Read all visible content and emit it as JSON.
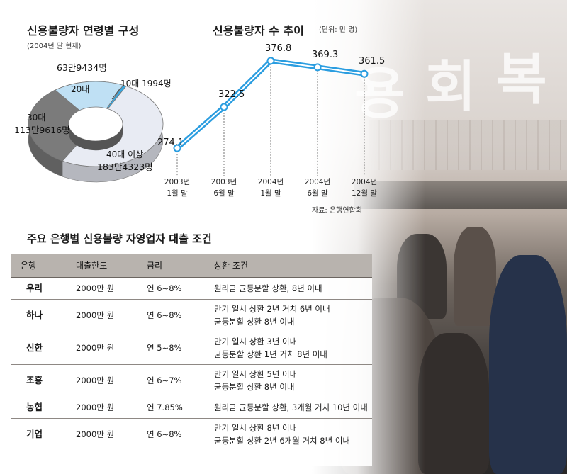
{
  "colors": {
    "donut_20": "#bfe0f4",
    "donut_10": "#38a8e0",
    "donut_30": "#7b7b7b",
    "donut_40": "#e8ebf3",
    "line": "#2a9de0",
    "table_header": "#b8b3ae"
  },
  "donut_section": {
    "title": "신용불량자 연령별 구성",
    "subtitle": "(2004년 말 현재)"
  },
  "line_section": {
    "title": "신용불량자 수 추이",
    "unit": "(단위: 만 명)",
    "source": "자료: 은행연합회"
  },
  "chart_data": [
    {
      "type": "pie",
      "variant": "donut",
      "title": "신용불량자 연령별 구성",
      "subtitle": "(2004년 말 현재)",
      "slices": [
        {
          "label": "20대",
          "value_label": "63만9434명",
          "value": 639434,
          "color": "#bfe0f4"
        },
        {
          "label": "10대",
          "value_label": "1994명",
          "value": 1994,
          "color": "#38a8e0"
        },
        {
          "label": "40대 이상",
          "value_label": "183만4323명",
          "value": 1834323,
          "color": "#e8ebf3"
        },
        {
          "label": "30대",
          "value_label": "113만9616명",
          "value": 1139616,
          "color": "#7b7b7b"
        }
      ]
    },
    {
      "type": "line",
      "title": "신용불량자 수 추이",
      "unit": "(단위: 만 명)",
      "categories": [
        "2003년 1월 말",
        "2003년 6월 말",
        "2004년 1월 말",
        "2004년 6월 말",
        "2004년 12월 말"
      ],
      "category_lines": [
        [
          "2003년",
          "1월 말"
        ],
        [
          "2003년",
          "6월 말"
        ],
        [
          "2004년",
          "1월 말"
        ],
        [
          "2004년",
          "6월 말"
        ],
        [
          "2004년",
          "12월 말"
        ]
      ],
      "series": [
        {
          "values": [
            274.1,
            322.5,
            376.8,
            369.3,
            361.5
          ],
          "labels": [
            "274.1",
            "322.5",
            "376.8",
            "369.3",
            "361.5"
          ]
        }
      ],
      "source": "자료: 은행연합회"
    }
  ],
  "table": {
    "title": "주요 은행별 신용불량 자영업자  대출 조건",
    "headers": [
      "은행",
      "대출한도",
      "금리",
      "상환 조건"
    ],
    "rows": [
      {
        "bank": "우리",
        "limit": "2000만 원",
        "rate": "연 6∼8%",
        "cond": [
          "원리금 균등분할 상환, 8년 이내"
        ]
      },
      {
        "bank": "하나",
        "limit": "2000만 원",
        "rate": "연 6∼8%",
        "cond": [
          "만기 일시 상환 2년 거치 6년 이내",
          "균등분할 상환 8년 이내"
        ]
      },
      {
        "bank": "신한",
        "limit": "2000만 원",
        "rate": "연 5∼8%",
        "cond": [
          "만기 일시 상환 3년 이내",
          "균등분할 상환 1년 거치 8년 이내"
        ]
      },
      {
        "bank": "조흥",
        "limit": "2000만 원",
        "rate": "연 6∼7%",
        "cond": [
          "만기 일시 상환 5년 이내",
          "균등분할 상환 8년 이내"
        ]
      },
      {
        "bank": "농협",
        "limit": "2000만 원",
        "rate": "연 7.85%",
        "cond": [
          "원리금 균등분할 상환, 3개월 거치 10년 이내"
        ]
      },
      {
        "bank": "기업",
        "limit": "2000만 원",
        "rate": "연 6∼8%",
        "cond": [
          "만기 일시 상환 8년 이내",
          "균등분할 상환 2년 6개월 거치 8년 이내"
        ]
      }
    ]
  }
}
